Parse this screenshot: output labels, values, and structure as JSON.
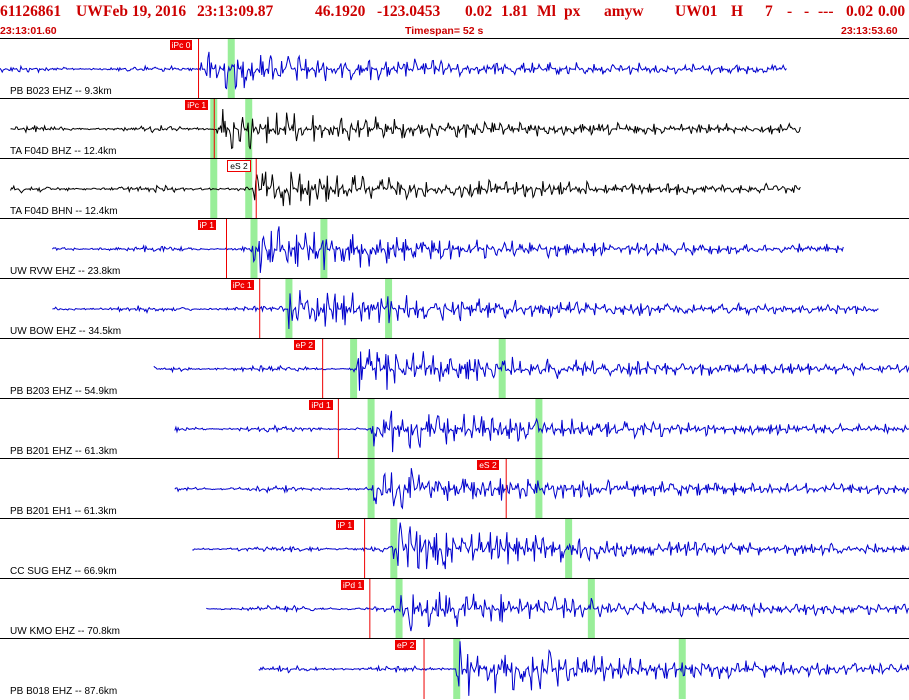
{
  "header": {
    "event_id": "61126861",
    "network": "UW",
    "date": "Feb 19, 2016",
    "time": "23:13:09.87",
    "lat": "46.1920",
    "lon": "-123.0453",
    "depth": "0.02",
    "mag": "1.81",
    "magtype": "Ml",
    "unit": "px",
    "user": "amyw",
    "src": "UW",
    "ver": "01",
    "etype": "H",
    "nph": "7",
    "d1": "-",
    "d2": "-",
    "d3": "---",
    "rms": "0.02",
    "err": "0.00"
  },
  "timebar": {
    "start": "23:13:01.60",
    "timespan": "Timespan=  52 s",
    "end": "23:13:53.60"
  },
  "colors": {
    "header_text": "#cc0000",
    "trace_blue": "#0000cc",
    "trace_black": "#000000",
    "pick_red": "#ee0000",
    "window_green": "#99ee99"
  },
  "traces": [
    {
      "label": "PB B023 EHZ -- 9.3km",
      "color": "blue",
      "start_s": 0,
      "end_s": 45.0,
      "onset_s": 11.5,
      "amp": "medium",
      "picks": [
        {
          "text": "iPc 0",
          "t_s": 11.3
        }
      ],
      "green_s": [
        13.2
      ]
    },
    {
      "label": "TA F04D BHZ -- 12.4km",
      "color": "black",
      "start_s": 0.6,
      "end_s": 45.8,
      "onset_s": 12.4,
      "amp": "medium",
      "picks": [
        {
          "text": "iPc 1",
          "t_s": 12.2
        }
      ],
      "green_s": [
        12.2,
        14.2
      ]
    },
    {
      "label": "TA F04D BHN -- 12.4km",
      "color": "black",
      "start_s": 0.6,
      "end_s": 45.8,
      "onset_s": 14.5,
      "amp": "medium",
      "picks": [
        {
          "text": "eS 2",
          "t_s": 14.6,
          "outline": true
        }
      ],
      "green_s": [
        12.2,
        14.2
      ]
    },
    {
      "label": "UW RVW EHZ -- 23.8km",
      "color": "blue",
      "start_s": 3.0,
      "end_s": 48.3,
      "onset_s": 14.5,
      "amp": "large",
      "picks": [
        {
          "text": "iP 1",
          "t_s": 12.9
        }
      ],
      "green_s": [
        14.5,
        18.5
      ]
    },
    {
      "label": "UW BOW EHZ -- 34.5km",
      "color": "blue",
      "start_s": 3.0,
      "end_s": 50.3,
      "onset_s": 16.5,
      "amp": "medium",
      "picks": [
        {
          "text": "iPc 1",
          "t_s": 14.8
        }
      ],
      "green_s": [
        16.5,
        22.2
      ]
    },
    {
      "label": "PB B203 EHZ -- 54.9km",
      "color": "blue",
      "start_s": 8.8,
      "end_s": 54.0,
      "onset_s": 20.2,
      "amp": "medium",
      "picks": [
        {
          "text": "eP 2",
          "t_s": 18.4
        }
      ],
      "green_s": [
        20.2,
        28.7
      ]
    },
    {
      "label": "PB B201 EHZ -- 61.3km",
      "color": "blue",
      "start_s": 10.0,
      "end_s": 55.3,
      "onset_s": 21.2,
      "amp": "medium",
      "picks": [
        {
          "text": "iPd 1",
          "t_s": 19.3
        }
      ],
      "green_s": [
        21.2,
        30.8
      ]
    },
    {
      "label": "PB B201 EH1 -- 61.3km",
      "color": "blue",
      "start_s": 10.0,
      "end_s": 55.3,
      "onset_s": 21.2,
      "amp": "medium",
      "picks": [
        {
          "text": "eS 2",
          "t_s": 28.9
        }
      ],
      "green_s": [
        21.2,
        30.8
      ]
    },
    {
      "label": "CC SUG EHZ -- 66.9km",
      "color": "blue",
      "start_s": 11.0,
      "end_s": 56.0,
      "onset_s": 22.5,
      "amp": "large",
      "picks": [
        {
          "text": "iP 1",
          "t_s": 20.8
        }
      ],
      "green_s": [
        22.5,
        32.5
      ]
    },
    {
      "label": "UW KMO EHZ -- 70.8km",
      "color": "blue",
      "start_s": 11.8,
      "end_s": 56.7,
      "onset_s": 22.8,
      "amp": "medium",
      "picks": [
        {
          "text": "iPd 1",
          "t_s": 21.1
        }
      ],
      "green_s": [
        22.8,
        33.8
      ]
    },
    {
      "label": "PB B018 EHZ -- 87.6km",
      "color": "blue",
      "start_s": 14.8,
      "end_s": 60.0,
      "onset_s": 26.1,
      "amp": "large",
      "picks": [
        {
          "text": "eP 2",
          "t_s": 24.2
        }
      ],
      "green_s": [
        26.1,
        39.0
      ]
    }
  ]
}
